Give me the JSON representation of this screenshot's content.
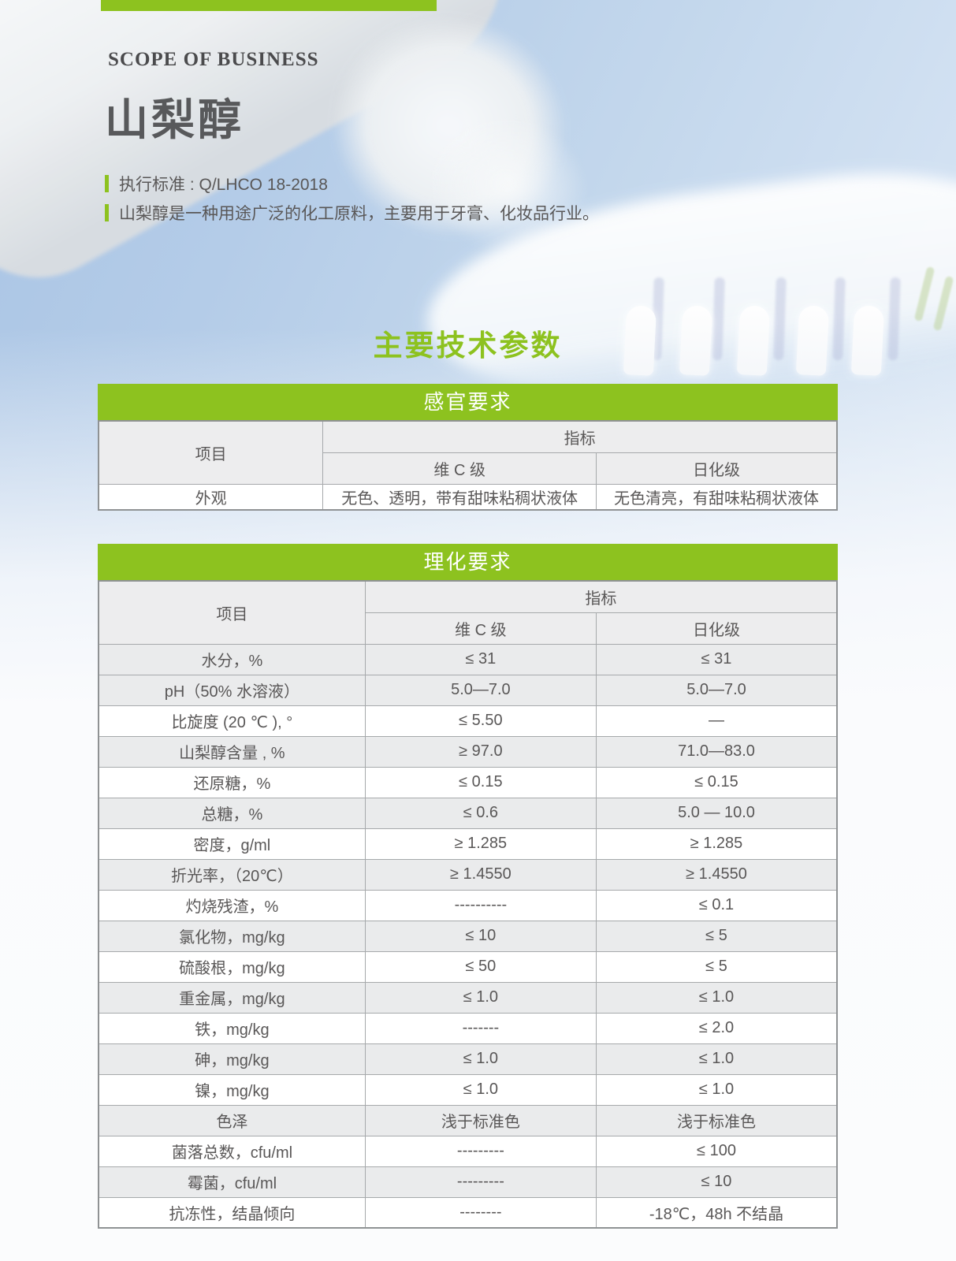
{
  "header": {
    "eyebrow": "SCOPE OF BUSINESS",
    "title": "山梨醇",
    "bullets": [
      "执行标准 : Q/LHCO 18-2018",
      "山梨醇是一种用途广泛的化工原料，主要用于牙膏、化妆品行业。"
    ]
  },
  "section_heading": "主要技术参数",
  "colors": {
    "accent_green": "#8dc21f",
    "text_dark": "#595757",
    "row_shade": "#eaebec",
    "header_shade": "#ededee",
    "sky_blue": "#a9c4e4"
  },
  "tables": [
    {
      "title": "感官要求",
      "col_headers": {
        "item": "项目",
        "index": "指标",
        "grade1": "维 C 级",
        "grade2": "日化级"
      },
      "rows": [
        {
          "item": "外观",
          "vc": "无色、透明，带有甜味粘稠状液体",
          "daily": "无色清亮，有甜味粘稠状液体",
          "shaded": false
        }
      ]
    },
    {
      "title": "理化要求",
      "col_headers": {
        "item": "项目",
        "index": "指标",
        "grade1": "维 C 级",
        "grade2": "日化级"
      },
      "rows": [
        {
          "item": "水分，%",
          "vc": "≤ 31",
          "daily": "≤ 31",
          "shaded": true
        },
        {
          "item": "pH（50% 水溶液）",
          "vc": "5.0—7.0",
          "daily": "5.0—7.0",
          "shaded": true
        },
        {
          "item": "比旋度 (20 ℃ ), °",
          "vc": "≤ 5.50",
          "daily": "—",
          "shaded": false
        },
        {
          "item": "山梨醇含量 , %",
          "vc": "≥ 97.0",
          "daily": "71.0—83.0",
          "shaded": true
        },
        {
          "item": "还原糖，%",
          "vc": "≤ 0.15",
          "daily": "≤ 0.15",
          "shaded": false
        },
        {
          "item": "总糖，%",
          "vc": "≤ 0.6",
          "daily": "5.0 — 10.0",
          "shaded": true
        },
        {
          "item": "密度，g/ml",
          "vc": "≥ 1.285",
          "daily": "≥ 1.285",
          "shaded": false
        },
        {
          "item": "折光率，（20℃）",
          "vc": "≥ 1.4550",
          "daily": "≥ 1.4550",
          "shaded": true
        },
        {
          "item": "灼烧残渣，%",
          "vc": "----------",
          "daily": "≤ 0.1",
          "shaded": false
        },
        {
          "item": "氯化物，mg/kg",
          "vc": "≤ 10",
          "daily": "≤ 5",
          "shaded": true
        },
        {
          "item": "硫酸根，mg/kg",
          "vc": "≤ 50",
          "daily": "≤ 5",
          "shaded": false
        },
        {
          "item": "重金属，mg/kg",
          "vc": "≤ 1.0",
          "daily": "≤ 1.0",
          "shaded": true
        },
        {
          "item": "铁，mg/kg",
          "vc": "-------",
          "daily": "≤ 2.0",
          "shaded": false
        },
        {
          "item": "砷，mg/kg",
          "vc": "≤ 1.0",
          "daily": "≤ 1.0",
          "shaded": true
        },
        {
          "item": "镍，mg/kg",
          "vc": "≤ 1.0",
          "daily": "≤ 1.0",
          "shaded": false
        },
        {
          "item": "色泽",
          "vc": "浅于标准色",
          "daily": "浅于标准色",
          "shaded": true
        },
        {
          "item": "菌落总数，cfu/ml",
          "vc": "---------",
          "daily": "≤ 100",
          "shaded": false
        },
        {
          "item": "霉菌，cfu/ml",
          "vc": "---------",
          "daily": "≤ 10",
          "shaded": true
        },
        {
          "item": "抗冻性，结晶倾向",
          "vc": "--------",
          "daily": "-18℃，48h 不结晶",
          "shaded": false
        }
      ]
    }
  ]
}
